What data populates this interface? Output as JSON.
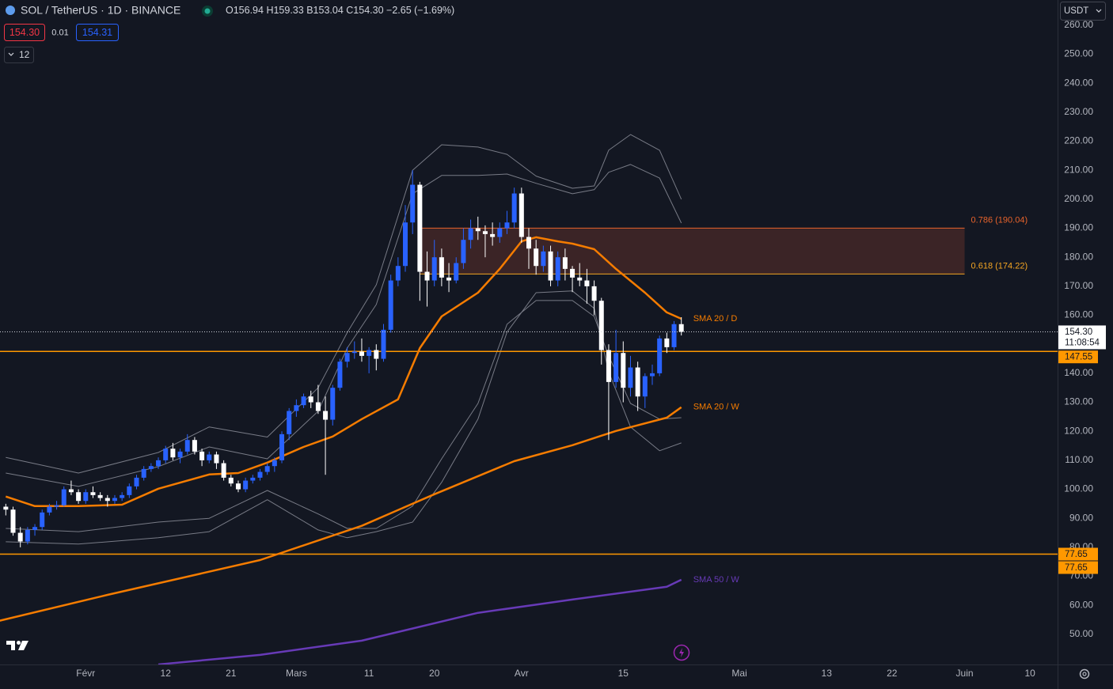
{
  "header": {
    "symbol": "SOL / TetherUS · 1D · BINANCE",
    "ohlc": [
      "O156.94",
      "H159.33",
      "B153.04",
      "C154.30"
    ],
    "change": "−2.65 (−1.69%)",
    "sell": "154.30",
    "spread": "0.01",
    "buy": "154.31",
    "indicators": "12",
    "currency": "USDT"
  },
  "chart_data": {
    "type": "candlestick",
    "x": [
      21,
      22,
      23,
      24,
      25,
      26,
      27,
      28,
      29,
      30,
      31,
      32,
      33,
      34,
      35,
      36,
      37,
      38,
      39,
      40,
      41,
      42,
      43,
      44,
      45,
      46,
      47,
      48,
      49,
      50,
      51,
      52,
      53,
      54,
      55,
      56,
      57,
      58,
      59,
      60,
      61,
      62,
      63,
      64,
      65,
      66,
      67,
      68,
      69,
      70,
      71,
      72,
      73,
      74,
      75,
      76,
      77,
      78,
      79,
      80,
      81,
      82,
      83,
      84,
      85,
      86,
      87,
      88,
      89,
      90,
      91,
      92,
      93,
      94,
      95,
      96,
      97,
      98,
      99,
      100,
      101,
      102,
      103,
      104,
      105,
      106,
      107,
      108,
      109,
      110,
      111,
      112,
      113,
      114
    ],
    "open": [
      94,
      93,
      85,
      82,
      86,
      87,
      92,
      94,
      94.5,
      100,
      99,
      96,
      99,
      98,
      97,
      96,
      97,
      98,
      101,
      104,
      107,
      108,
      110,
      114,
      111,
      113,
      117,
      113,
      110,
      112,
      109,
      104,
      102,
      100,
      103,
      104,
      106,
      108,
      110,
      119,
      127,
      129,
      132,
      130,
      127,
      124,
      135,
      144,
      147,
      147.5,
      146,
      148,
      145,
      155,
      172,
      177,
      192,
      205,
      175,
      172,
      180,
      173,
      172,
      178,
      186,
      190,
      189,
      188,
      187,
      190,
      192,
      202,
      187,
      183,
      177,
      182,
      172,
      180,
      176,
      173,
      172,
      170,
      165,
      148,
      137,
      147,
      135,
      142,
      132,
      139,
      140,
      152,
      149,
      156.94
    ],
    "high": [
      95,
      94,
      87,
      87,
      88,
      93,
      95,
      96,
      101,
      103,
      100,
      100,
      101,
      99,
      98,
      98,
      99,
      102,
      105,
      108,
      109,
      111,
      115,
      116,
      114,
      119,
      118,
      114,
      113,
      113,
      110,
      105,
      103,
      104,
      105,
      107,
      109,
      111,
      120,
      128,
      131,
      133,
      134,
      136,
      132,
      136,
      145,
      149,
      151,
      152,
      149,
      150,
      157,
      174,
      180,
      198,
      210,
      206,
      182,
      186,
      183,
      178,
      180,
      190,
      193,
      194,
      191,
      192,
      192,
      196,
      204,
      204,
      190,
      186,
      184,
      184,
      182,
      183,
      177,
      178,
      176,
      172,
      166,
      150,
      155,
      151,
      146,
      144,
      140,
      143,
      153,
      154,
      158,
      159.33
    ],
    "low": [
      91,
      84,
      80,
      81,
      84,
      86,
      91,
      93,
      94,
      98,
      95,
      95,
      97,
      96,
      94,
      95,
      96,
      97,
      100,
      103,
      106,
      107,
      109,
      110,
      109,
      112,
      112,
      108,
      109,
      107,
      103,
      101,
      99,
      99,
      102,
      103,
      105,
      106,
      109,
      117,
      125,
      128,
      128,
      126,
      105,
      122,
      134,
      142,
      145,
      144,
      140,
      141,
      144,
      154,
      170,
      175,
      188,
      165,
      163,
      170,
      170,
      168,
      171,
      176,
      183,
      186,
      180,
      184,
      185,
      188,
      190,
      185,
      176,
      174,
      175,
      170,
      170,
      172,
      168,
      170,
      164,
      160,
      143,
      117,
      135,
      130,
      132,
      127,
      128,
      136,
      139,
      147,
      148,
      153.04
    ],
    "close": [
      93,
      85,
      82,
      86,
      87,
      92,
      94,
      94.5,
      100,
      99,
      96,
      99,
      98,
      97,
      96,
      97,
      98,
      101,
      104,
      107,
      108,
      110,
      114,
      111,
      113,
      117,
      113,
      110,
      112,
      109,
      104,
      102,
      100,
      103,
      104,
      106,
      108,
      110,
      119,
      127,
      129,
      132,
      130,
      127,
      124,
      135,
      144,
      147,
      147.5,
      146,
      148,
      145,
      155,
      172,
      177,
      192,
      205,
      175,
      172,
      180,
      173,
      172,
      178,
      186,
      190,
      189,
      188,
      187,
      190,
      192,
      202,
      187,
      183,
      177,
      182,
      172,
      180,
      176,
      173,
      172,
      170,
      165,
      148,
      137,
      147,
      135,
      142,
      132,
      139,
      140,
      152,
      149,
      156.94,
      154.3
    ],
    "up_color": "#2962ff",
    "down_color": "#ffffff",
    "xlim": [
      20.2,
      165.8
    ],
    "xticks": [
      {
        "value": 32,
        "label": "Févr"
      },
      {
        "value": 43,
        "label": "12"
      },
      {
        "value": 52,
        "label": "21"
      },
      {
        "value": 61,
        "label": "Mars"
      },
      {
        "value": 71,
        "label": "11"
      },
      {
        "value": 80,
        "label": "20"
      },
      {
        "value": 92,
        "label": "Avr"
      },
      {
        "value": 106,
        "label": "15"
      },
      {
        "value": 122,
        "label": "Mai"
      },
      {
        "value": 134,
        "label": "13"
      },
      {
        "value": 143,
        "label": "22"
      },
      {
        "value": 153,
        "label": "Juin"
      },
      {
        "value": 162,
        "label": "10"
      }
    ],
    "ylim": [
      39.6,
      268.7
    ],
    "yticks": [
      {
        "value": 50,
        "label": "50.00"
      },
      {
        "value": 60,
        "label": "60.00"
      },
      {
        "value": 70,
        "label": "70.00"
      },
      {
        "value": 80,
        "label": "80.00"
      },
      {
        "value": 90,
        "label": "90.00"
      },
      {
        "value": 100,
        "label": "100.00"
      },
      {
        "value": 110,
        "label": "110.00"
      },
      {
        "value": 120,
        "label": "120.00"
      },
      {
        "value": 130,
        "label": "130.00"
      },
      {
        "value": 140,
        "label": "140.00"
      },
      {
        "value": 150,
        "label": "150.00"
      },
      {
        "value": 160,
        "label": "160.00"
      },
      {
        "value": 170,
        "label": "170.00"
      },
      {
        "value": 180,
        "label": "180.00"
      },
      {
        "value": 190,
        "label": "190.00"
      },
      {
        "value": 200,
        "label": "200.00"
      },
      {
        "value": 210,
        "label": "210.00"
      },
      {
        "value": 220,
        "label": "220.00"
      },
      {
        "value": 230,
        "label": "230.00"
      },
      {
        "value": 240,
        "label": "240.00"
      },
      {
        "value": 250,
        "label": "250.00"
      },
      {
        "value": 260,
        "label": "260.00"
      }
    ],
    "grid": false,
    "bands": [
      {
        "color": "#787b86",
        "x": [
          21,
          31,
          42,
          49,
          57,
          64,
          68,
          72,
          77,
          81,
          86,
          90,
          94,
          99,
          102,
          104,
          107,
          111,
          114
        ],
        "values": [
          111,
          105.6,
          112.7,
          121.5,
          118,
          135,
          154,
          170.5,
          210,
          218.8,
          218,
          215.5,
          208,
          203.8,
          204.6,
          216.9,
          222.3,
          216.9,
          200
        ]
      },
      {
        "color": "#787b86",
        "x": [
          21,
          31,
          42,
          49,
          57,
          64,
          68,
          72,
          77,
          81,
          86,
          90,
          94,
          99,
          102,
          104,
          107,
          111,
          114
        ],
        "values": [
          105.6,
          101,
          107.8,
          114.6,
          110.5,
          126.9,
          148.7,
          163.7,
          201.9,
          208.2,
          208.2,
          208.7,
          205.5,
          201.9,
          203.3,
          209.3,
          212,
          207.3,
          191.8
        ]
      },
      {
        "color": "#787b86",
        "x": [
          21,
          31,
          42,
          49,
          57,
          64,
          68,
          72,
          77,
          81,
          86,
          90,
          94,
          99,
          102,
          104,
          107,
          111,
          114
        ],
        "values": [
          86.5,
          85.4,
          88.7,
          90,
          99.6,
          91.5,
          86.5,
          86.5,
          94.2,
          110.5,
          129.6,
          156.9,
          165.1,
          165.1,
          159.6,
          146,
          129.6,
          124.2,
          124.7
        ]
      },
      {
        "color": "#787b86",
        "x": [
          21,
          31,
          42,
          49,
          57,
          64,
          68,
          72,
          77,
          81,
          86,
          90,
          94,
          99,
          102,
          104,
          107,
          111,
          114
        ],
        "values": [
          81.9,
          81.1,
          83.3,
          85.4,
          96.4,
          86,
          83.3,
          85.4,
          88.7,
          102.4,
          124.2,
          154.2,
          167.8,
          168.4,
          162.4,
          140.5,
          121.5,
          113.3,
          116
        ]
      }
    ],
    "lines": [
      {
        "name": "SMA 20 / D",
        "color": "#f57c00",
        "x": [
          21,
          25,
          31,
          37,
          42,
          49,
          53,
          57,
          62,
          66,
          70,
          75,
          78,
          81,
          86,
          89,
          92,
          94,
          97,
          99,
          102,
          105,
          109,
          112,
          114
        ],
        "values": [
          97.5,
          94.2,
          94.2,
          94.7,
          100.2,
          105.1,
          105.6,
          109.2,
          114.6,
          118.2,
          124.2,
          131,
          148.7,
          159.6,
          167.8,
          176,
          185.5,
          186.9,
          185.5,
          184.7,
          182.8,
          176,
          167.8,
          161,
          158.8
        ]
      },
      {
        "name": "SMA 20 / W",
        "color": "#f57c00",
        "x": [
          20,
          35,
          56,
          70,
          80,
          91,
          99,
          105,
          112,
          114
        ],
        "values": [
          54.6,
          63.6,
          75.6,
          87.4,
          98.3,
          109.7,
          115.2,
          120.1,
          124.7,
          128.3
        ]
      },
      {
        "name": "SMA 50 / W",
        "color": "#673ab7",
        "x": [
          42,
          56,
          70,
          86,
          99,
          112,
          114
        ],
        "values": [
          39.6,
          42.9,
          47.8,
          57.4,
          62,
          66.4,
          68.8
        ]
      }
    ],
    "levels": [
      {
        "value": 147.55,
        "label": "147.55",
        "color": "#ff9800"
      },
      {
        "value": 77.65,
        "label": "77.65",
        "color": "#ff9800"
      }
    ],
    "fib": {
      "x": [
        78,
        153
      ],
      "fill": "rgba(242,102,60,0.18)",
      "levels": [
        {
          "value": 190.04,
          "label": "0.786 (190.04)",
          "color": "#e8632b"
        },
        {
          "value": 174.22,
          "label": "0.618 (174.22)",
          "color": "#f5a623"
        }
      ]
    },
    "last_price": {
      "value": 154.3,
      "label": "154.30",
      "countdown": "11:08:54"
    }
  }
}
